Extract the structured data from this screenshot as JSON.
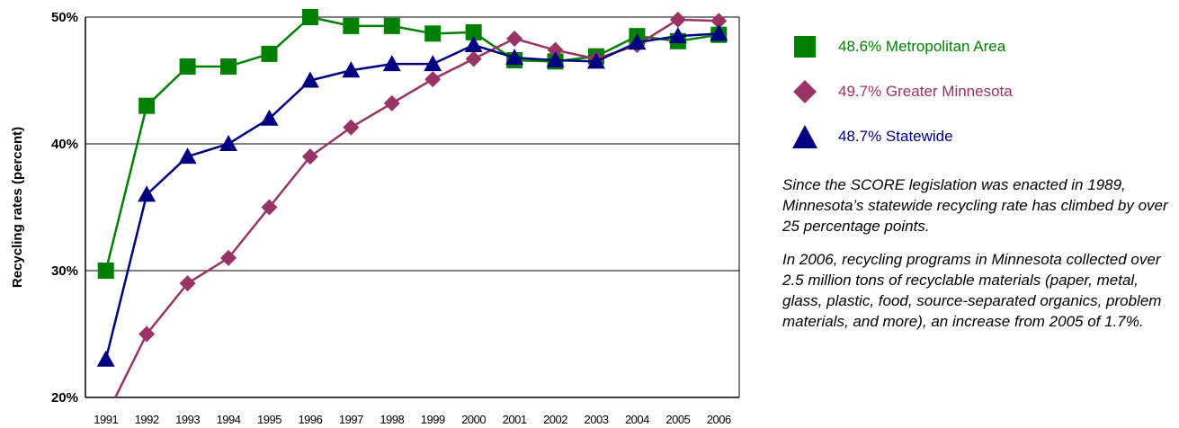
{
  "chart_data": {
    "type": "line",
    "ylabel": "Recycling rates (percent)",
    "xlabel": "",
    "ylim": [
      20,
      50
    ],
    "yticks": [
      20,
      30,
      40,
      50
    ],
    "ytick_labels": [
      "20%",
      "30%",
      "40%",
      "50%"
    ],
    "grid": true,
    "legend_position": "right",
    "x": [
      "1991",
      "1992",
      "1993",
      "1994",
      "1995",
      "1996",
      "1997",
      "1998",
      "1999",
      "2000",
      "2001",
      "2002",
      "2003",
      "2004",
      "2005",
      "2006"
    ],
    "series": [
      {
        "name": "48.6% Metropolitan Area",
        "color": "#008000",
        "marker": "square",
        "values": [
          30,
          43,
          46.1,
          46.1,
          47.1,
          50,
          49.3,
          49.3,
          48.7,
          48.8,
          46.6,
          46.5,
          46.9,
          48.5,
          48.1,
          48.6
        ]
      },
      {
        "name": "49.7% Greater Minnesota",
        "color": "#993366",
        "marker": "diamond",
        "values": [
          18.5,
          25,
          29,
          31,
          35,
          39,
          41.3,
          43.2,
          45.1,
          46.7,
          48.3,
          47.4,
          46.7,
          47.8,
          49.8,
          49.7
        ]
      },
      {
        "name": "48.7% Statewide",
        "color": "#000080",
        "marker": "triangle",
        "values": [
          23,
          36,
          39,
          40,
          42,
          45,
          45.8,
          46.3,
          46.3,
          47.8,
          46.8,
          46.6,
          46.5,
          48,
          48.5,
          48.7
        ]
      }
    ]
  },
  "notes": [
    "Since the SCORE legislation was enacted in 1989, Minnesota’s statewide recycling rate has climbed by over 25 percentage points.",
    "In 2006, recycling programs in Minnesota collected over 2.5 million tons of recyclable materials (paper, metal, glass, plastic, food, source-separated organics, problem materials, and more), an increase from 2005 of 1.7%."
  ]
}
